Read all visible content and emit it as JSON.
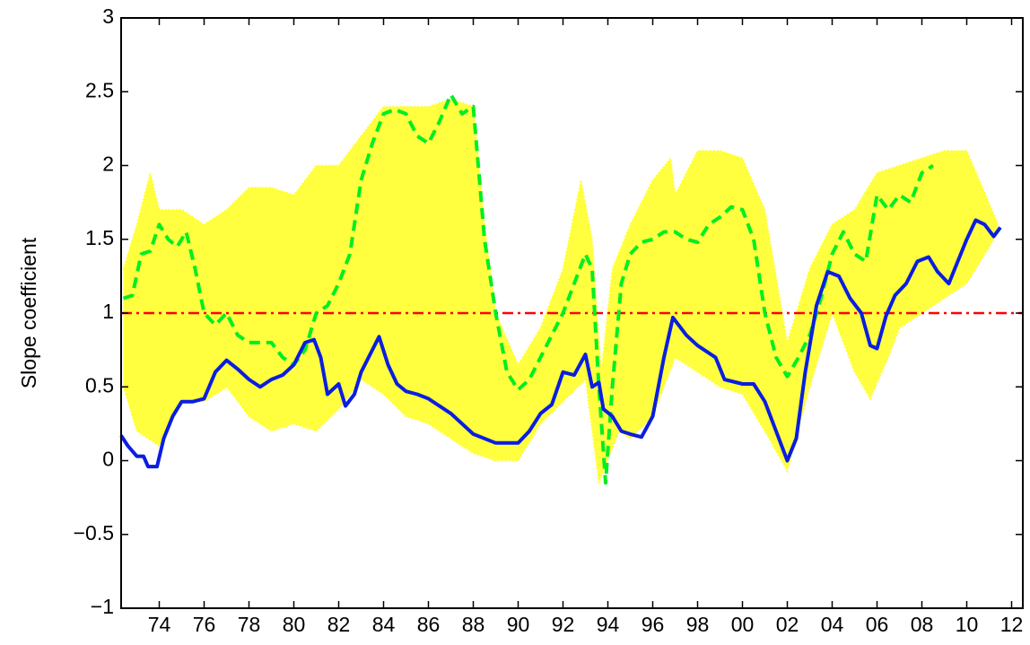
{
  "chart_data": {
    "type": "line",
    "ylabel": "Slope coefficient",
    "xlim": [
      1972.3,
      2012.5
    ],
    "ylim": [
      -1,
      3
    ],
    "xticks": [
      {
        "value": 1974,
        "label": "74"
      },
      {
        "value": 1976,
        "label": "76"
      },
      {
        "value": 1978,
        "label": "78"
      },
      {
        "value": 1980,
        "label": "80"
      },
      {
        "value": 1982,
        "label": "82"
      },
      {
        "value": 1984,
        "label": "84"
      },
      {
        "value": 1986,
        "label": "86"
      },
      {
        "value": 1988,
        "label": "88"
      },
      {
        "value": 1990,
        "label": "90"
      },
      {
        "value": 1992,
        "label": "92"
      },
      {
        "value": 1994,
        "label": "94"
      },
      {
        "value": 1996,
        "label": "96"
      },
      {
        "value": 1998,
        "label": "98"
      },
      {
        "value": 2000,
        "label": "00"
      },
      {
        "value": 2002,
        "label": "02"
      },
      {
        "value": 2004,
        "label": "04"
      },
      {
        "value": 2006,
        "label": "06"
      },
      {
        "value": 2008,
        "label": "08"
      },
      {
        "value": 2010,
        "label": "10"
      },
      {
        "value": 2012,
        "label": "12"
      }
    ],
    "yticks": [
      {
        "value": -1,
        "label": "−1"
      },
      {
        "value": -0.5,
        "label": "−0.5"
      },
      0,
      0.5,
      1,
      1.5,
      2,
      2.5,
      3
    ],
    "grid": false,
    "band": {
      "color": "#ffff00",
      "upper": {
        "x": [
          1972.4,
          1973,
          1973.6,
          1974,
          1975,
          1976,
          1977,
          1978,
          1979,
          1980,
          1981,
          1982,
          1983,
          1984,
          1985,
          1986,
          1987,
          1988,
          1988.5,
          1989,
          1990,
          1991,
          1992,
          1992.8,
          1993.3,
          1993.7,
          1994.2,
          1995,
          1996,
          1996.8,
          1997,
          1998,
          1999,
          2000,
          2001,
          2002,
          2003,
          2004,
          2005,
          2006,
          2007,
          2008,
          2009,
          2010,
          2011.4
        ],
        "values": [
          1.3,
          1.6,
          1.95,
          1.7,
          1.7,
          1.6,
          1.7,
          1.85,
          1.85,
          1.8,
          2.0,
          2.0,
          2.2,
          2.4,
          2.4,
          2.4,
          2.45,
          2.4,
          1.6,
          1.0,
          0.65,
          0.9,
          1.3,
          1.9,
          1.5,
          0.6,
          1.3,
          1.6,
          1.9,
          2.05,
          1.8,
          2.1,
          2.1,
          2.05,
          1.7,
          0.8,
          1.3,
          1.6,
          1.7,
          1.95,
          2.0,
          2.05,
          2.1,
          2.1,
          1.6
        ]
      },
      "lower": {
        "x": [
          1972.4,
          1973,
          1974,
          1975,
          1976,
          1977,
          1978,
          1979,
          1980,
          1981,
          1982,
          1983,
          1984,
          1985,
          1986,
          1987,
          1988,
          1989,
          1990,
          1991,
          1992,
          1993,
          1993.6,
          1994.5,
          1995,
          1996,
          1997,
          1998,
          1999,
          2000,
          2001,
          2002,
          2003,
          2004,
          2005,
          2005.7,
          2006.5,
          2007,
          2008,
          2009,
          2010,
          2011.4
        ],
        "values": [
          0.5,
          0.2,
          0.1,
          0.4,
          0.4,
          0.5,
          0.3,
          0.2,
          0.25,
          0.2,
          0.35,
          0.55,
          0.45,
          0.3,
          0.25,
          0.15,
          0.05,
          0.0,
          0.0,
          0.25,
          0.4,
          0.55,
          -0.15,
          0.2,
          0.15,
          0.3,
          0.7,
          0.6,
          0.5,
          0.45,
          0.2,
          -0.07,
          0.5,
          1.0,
          0.6,
          0.42,
          0.7,
          0.9,
          1.0,
          1.1,
          1.2,
          1.55
        ]
      }
    },
    "reference_line": {
      "y": 1,
      "color": "#ff0000",
      "style": "dashdot"
    },
    "series": [
      {
        "color": "#00ee22",
        "style": "dashed",
        "x": [
          1972.4,
          1972.8,
          1973.2,
          1973.6,
          1974,
          1974.4,
          1974.8,
          1975.2,
          1975.6,
          1976,
          1976.5,
          1977,
          1977.5,
          1978,
          1979,
          1979.5,
          1980,
          1980.5,
          1981,
          1981.5,
          1982,
          1982.5,
          1983,
          1983.5,
          1984,
          1984.5,
          1985,
          1985.5,
          1986,
          1986.5,
          1987,
          1987.5,
          1988,
          1988.5,
          1989,
          1989.5,
          1990,
          1990.5,
          1991,
          1991.5,
          1992,
          1992.5,
          1993,
          1993.3,
          1993.6,
          1993.9,
          1994.2,
          1994.6,
          1995,
          1995.5,
          1996,
          1996.5,
          1997,
          1997.5,
          1998,
          1998.5,
          1999,
          1999.5,
          2000,
          2000.5,
          2001,
          2001.5,
          2002,
          2002.5,
          2003,
          2003.5,
          2004,
          2004.5,
          2005,
          2005.5,
          2006,
          2006.5,
          2007,
          2007.5,
          2008,
          2008.5
        ],
        "values": [
          1.1,
          1.12,
          1.4,
          1.42,
          1.6,
          1.5,
          1.45,
          1.55,
          1.3,
          1.0,
          0.92,
          1.0,
          0.85,
          0.8,
          0.8,
          0.7,
          0.65,
          0.75,
          1.0,
          1.05,
          1.2,
          1.4,
          1.9,
          2.15,
          2.35,
          2.38,
          2.35,
          2.2,
          2.15,
          2.3,
          2.48,
          2.35,
          2.4,
          1.5,
          1.0,
          0.6,
          0.48,
          0.55,
          0.7,
          0.85,
          1.0,
          1.2,
          1.4,
          1.3,
          0.5,
          -0.15,
          0.5,
          1.2,
          1.4,
          1.48,
          1.5,
          1.55,
          1.55,
          1.5,
          1.48,
          1.6,
          1.65,
          1.72,
          1.7,
          1.5,
          1.0,
          0.7,
          0.57,
          0.7,
          0.85,
          1.1,
          1.4,
          1.55,
          1.4,
          1.35,
          1.8,
          1.7,
          1.8,
          1.75,
          1.95,
          2.0
        ]
      },
      {
        "color": "#0a1ee0",
        "style": "solid",
        "x": [
          1972.3,
          1972.6,
          1973,
          1973.3,
          1973.5,
          1973.9,
          1974.2,
          1974.6,
          1975,
          1975.5,
          1976,
          1976.5,
          1977,
          1977.5,
          1978,
          1978.5,
          1979,
          1979.5,
          1980,
          1980.5,
          1980.9,
          1981.2,
          1981.5,
          1982,
          1982.3,
          1982.7,
          1983,
          1983.5,
          1983.8,
          1984.2,
          1984.6,
          1985,
          1985.5,
          1986,
          1987,
          1988,
          1989,
          1990,
          1990.5,
          1991,
          1991.5,
          1992,
          1992.5,
          1993,
          1993.3,
          1993.6,
          1993.8,
          1994.2,
          1994.6,
          1995,
          1995.5,
          1996,
          1996.5,
          1996.9,
          1997.5,
          1998,
          1998.8,
          1999.2,
          2000,
          2000.5,
          2001,
          2001.5,
          2002,
          2002.4,
          2002.8,
          2003.3,
          2003.8,
          2004.3,
          2004.8,
          2005.3,
          2005.7,
          2006,
          2006.4,
          2006.8,
          2007.3,
          2007.8,
          2008.3,
          2008.7,
          2009.2,
          2009.6,
          2010,
          2010.4,
          2010.8,
          2011.2,
          2011.5
        ],
        "values": [
          0.17,
          0.1,
          0.03,
          0.03,
          -0.04,
          -0.04,
          0.15,
          0.3,
          0.4,
          0.4,
          0.42,
          0.6,
          0.68,
          0.62,
          0.55,
          0.5,
          0.55,
          0.58,
          0.65,
          0.8,
          0.82,
          0.7,
          0.45,
          0.52,
          0.37,
          0.45,
          0.6,
          0.75,
          0.84,
          0.65,
          0.52,
          0.47,
          0.45,
          0.42,
          0.32,
          0.18,
          0.12,
          0.12,
          0.2,
          0.32,
          0.38,
          0.6,
          0.58,
          0.72,
          0.5,
          0.53,
          0.35,
          0.3,
          0.2,
          0.18,
          0.16,
          0.3,
          0.7,
          0.97,
          0.85,
          0.78,
          0.7,
          0.55,
          0.52,
          0.52,
          0.4,
          0.2,
          0.0,
          0.15,
          0.6,
          1.05,
          1.28,
          1.25,
          1.1,
          1.0,
          0.78,
          0.76,
          0.98,
          1.12,
          1.2,
          1.35,
          1.38,
          1.28,
          1.2,
          1.35,
          1.5,
          1.63,
          1.6,
          1.52,
          1.58
        ]
      }
    ]
  }
}
